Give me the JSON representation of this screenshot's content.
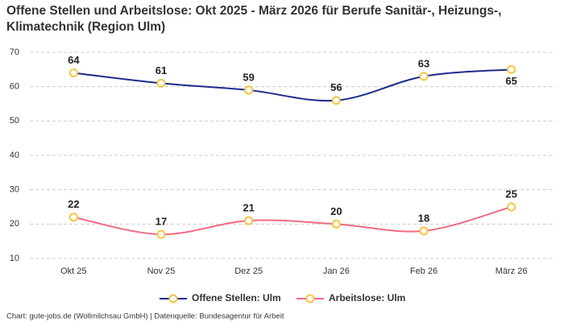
{
  "chart_data": {
    "type": "line",
    "title": "Offene Stellen und Arbeitslose: Okt 2025 - März 2026 für Berufe Sanitär-, Heizungs-, Klimatechnik (Region Ulm)",
    "categories": [
      "Okt 25",
      "Nov 25",
      "Dez 25",
      "Jan 26",
      "Feb 26",
      "März 26"
    ],
    "series": [
      {
        "name": "Offene Stellen: Ulm",
        "color": "#1b2a8a",
        "values": [
          64,
          61,
          59,
          56,
          63,
          65
        ]
      },
      {
        "name": "Arbeitslose: Ulm",
        "color": "#f06b84",
        "values": [
          22,
          17,
          21,
          20,
          18,
          25
        ]
      }
    ],
    "marker_color": "#f5c542",
    "ylim": [
      10,
      70
    ],
    "yticks": [
      10,
      20,
      30,
      40,
      50,
      60,
      70
    ],
    "grid": true,
    "source": "Chart: gute-jobs.de (Wollmilchsau GmbH) | Datenquelle: Bundesagentur für Arbeit"
  }
}
